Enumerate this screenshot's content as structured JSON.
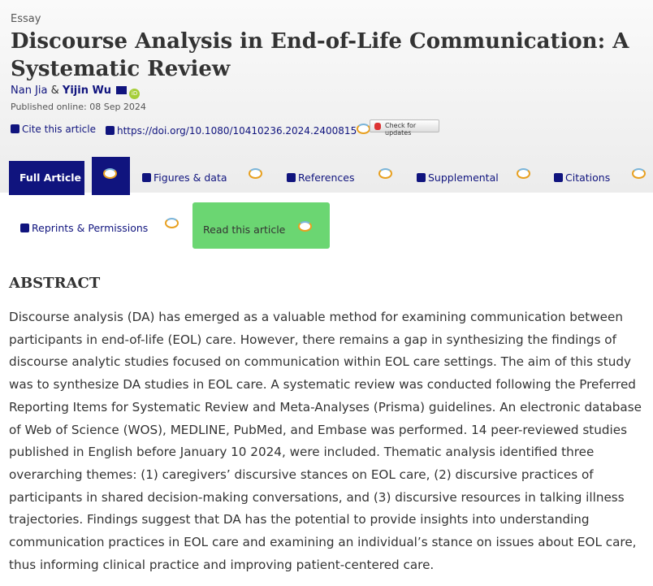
{
  "article": {
    "type": "Essay",
    "title": "Discourse Analysis in End-of-Life Communication: A Systematic Review",
    "author1": "Nan Jia",
    "amp": "&",
    "author2": "Yijin Wu",
    "published": "Published online: 08 Sep 2024"
  },
  "links": {
    "cite": "Cite this article",
    "doi": "https://doi.org/10.1080/10410236.2024.2400815",
    "check_updates": "Check for updates"
  },
  "tabs": [
    {
      "label": "Full Article",
      "icon": "file-icon"
    },
    {
      "label": "Figures & data",
      "icon": "image-icon"
    },
    {
      "label": "References",
      "icon": "book-icon"
    },
    {
      "label": "Supplemental",
      "icon": "plus-square-icon"
    },
    {
      "label": "Citations",
      "icon": "quote-icon"
    },
    {
      "label": "Reprints & Permissions",
      "icon": "print-icon"
    },
    {
      "label": "Read this article",
      "icon": "altmetric-icon"
    }
  ],
  "colors": {
    "brand": "#10147e",
    "read_button": "#6bd672"
  },
  "abstract": {
    "heading": "ABSTRACT",
    "text": "Discourse analysis (DA) has emerged as a valuable method for examining communication between participants in end-of-life (EOL) care. However, there remains a gap in synthesizing the findings of discourse analytic studies focused on communication within EOL care settings. The aim of this study was to synthesize DA studies in EOL care. A systematic review was conducted following the Preferred Reporting Items for Systematic Review and Meta-Analyses (Prisma) guidelines. An electronic database of Web of Science (WOS), MEDLINE, PubMed, and Embase was performed. 14 peer-reviewed studies published in English before January 10 2024, were included. Thematic analysis identified three overarching themes: (1) caregivers’ discursive stances on EOL care, (2) discursive practices of participants in shared decision-making conversations, and (3) discursive resources in talking illness trajectories. Findings suggest that DA has the potential to provide insights into understanding communication practices in EOL care and examining an individual’s stance on issues about EOL care, thus informing clinical practice and improving patient-centered care."
  }
}
